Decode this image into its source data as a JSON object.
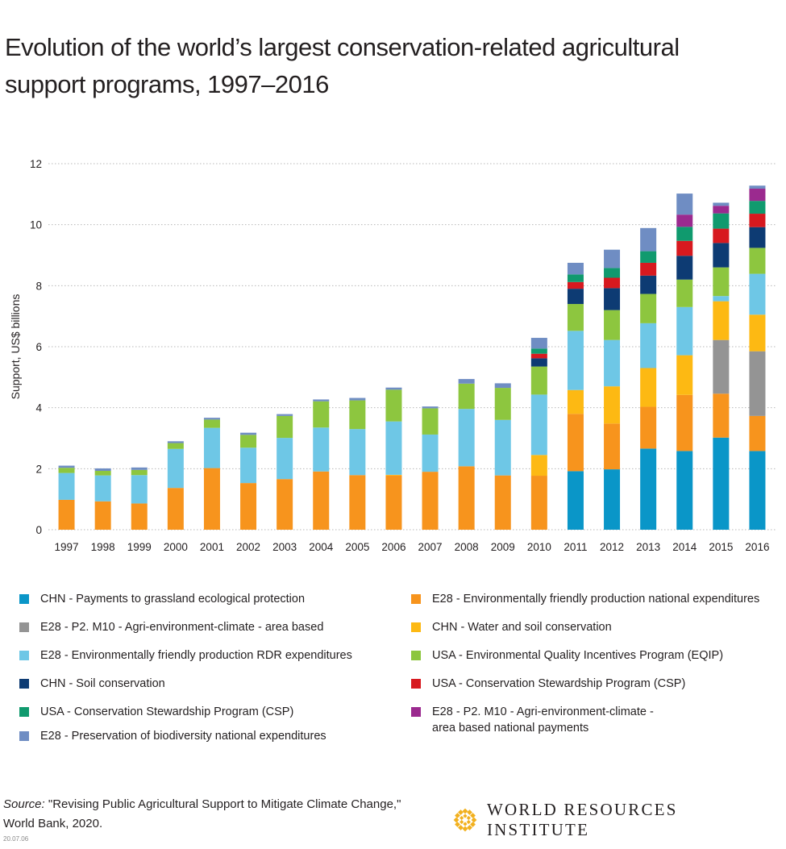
{
  "title_lines": [
    "Evolution of the world’s largest conservation-related agricultural",
    "support programs, 1997–2016"
  ],
  "source": {
    "label": "Source:",
    "line1": " \"Revising Public Agricultural Support to Mitigate Climate Change,\"",
    "line2": "World Bank, 2020."
  },
  "code": "20.07.06",
  "logo": {
    "text": "WORLD RESOURCES INSTITUTE",
    "color": "#f2b01e"
  },
  "chart_data": {
    "type": "bar",
    "stacked": true,
    "title": "Evolution of the world’s largest conservation-related agricultural support programs, 1997–2016",
    "ylabel": "Support, US$ billions",
    "xlabel": "",
    "ylim": [
      0,
      12
    ],
    "yticks": [
      0,
      2,
      4,
      6,
      8,
      10,
      12
    ],
    "grid": "horizontal",
    "legend_position": "bottom",
    "categories": [
      "1997",
      "1998",
      "1999",
      "2000",
      "2001",
      "2002",
      "2003",
      "2004",
      "2005",
      "2006",
      "2007",
      "2008",
      "2009",
      "2010",
      "2011",
      "2012",
      "2013",
      "2014",
      "2015",
      "2016"
    ],
    "series": [
      {
        "name": "CHN - Payments to grassland ecological protection",
        "color": "#0a96c8",
        "values": [
          0,
          0,
          0,
          0,
          0,
          0,
          0,
          0,
          0,
          0,
          0,
          0,
          0,
          0,
          1.92,
          1.98,
          2.66,
          2.58,
          3.02,
          2.58
        ]
      },
      {
        "name": "E28 - Environmentally friendly production  national expenditures",
        "color": "#f7941d",
        "values": [
          0.98,
          0.93,
          0.86,
          1.37,
          2.02,
          1.53,
          1.66,
          1.91,
          1.79,
          1.78,
          1.9,
          2.08,
          1.78,
          1.77,
          1.88,
          1.5,
          1.37,
          1.84,
          1.44,
          1.15
        ]
      },
      {
        "name": "E28 - P2. M10 - Agri-environment-climate - area based",
        "color": "#949494",
        "values": [
          0,
          0,
          0,
          0,
          0,
          0,
          0,
          0,
          0,
          0,
          0,
          0,
          0,
          0,
          0,
          0,
          0,
          0,
          1.76,
          2.12
        ]
      },
      {
        "name": "CHN - Water and soil conservation",
        "color": "#fdb913",
        "values": [
          0,
          0,
          0,
          0,
          0,
          0,
          0,
          0,
          0,
          0.02,
          0,
          0,
          0,
          0.68,
          0.78,
          1.22,
          1.27,
          1.3,
          1.27,
          1.2
        ]
      },
      {
        "name": "E28 - Environmentally friendly production  RDR expenditures",
        "color": "#6ec7e6",
        "values": [
          0.88,
          0.85,
          0.93,
          1.28,
          1.32,
          1.16,
          1.35,
          1.44,
          1.51,
          1.75,
          1.22,
          1.88,
          1.82,
          1.98,
          1.94,
          1.52,
          1.47,
          1.58,
          0.17,
          1.34
        ]
      },
      {
        "name": "USA - Environmental Quality Incentives Program (EQIP)",
        "color": "#8dc63f",
        "values": [
          0.17,
          0.15,
          0.17,
          0.19,
          0.27,
          0.42,
          0.72,
          0.86,
          0.94,
          1.04,
          0.86,
          0.83,
          1.05,
          0.92,
          0.88,
          0.98,
          0.96,
          0.9,
          0.94,
          0.85
        ]
      },
      {
        "name": "CHN - Soil conservation",
        "color": "#0d3b73",
        "values": [
          0,
          0,
          0,
          0,
          0,
          0,
          0,
          0,
          0,
          0,
          0,
          0,
          0,
          0.27,
          0.5,
          0.72,
          0.6,
          0.78,
          0.8,
          0.68
        ]
      },
      {
        "name": "USA - Conservation Stewardship Program (CSP)",
        "color": "#d7191f",
        "values": [
          0,
          0,
          0,
          0,
          0,
          0,
          0,
          0,
          0,
          0,
          0,
          0,
          0,
          0.15,
          0.22,
          0.34,
          0.42,
          0.49,
          0.47,
          0.44
        ]
      },
      {
        "name": "USA - Conservation Stewardship Program (CSP)",
        "color": "#109a6e",
        "values": [
          0,
          0,
          0,
          0,
          0,
          0,
          0,
          0,
          0,
          0,
          0,
          0,
          0,
          0.17,
          0.25,
          0.32,
          0.38,
          0.46,
          0.5,
          0.42
        ]
      },
      {
        "name": "E28 - P2. M10 - Agri-environment-climate - area based  national payments",
        "color": "#9b2a8f",
        "values": [
          0,
          0,
          0,
          0,
          0,
          0,
          0,
          0,
          0,
          0,
          0,
          0,
          0,
          0,
          0,
          0,
          0,
          0.4,
          0.25,
          0.4
        ]
      },
      {
        "name": "E28 - Preservation of biodiversity  national expenditures",
        "color": "#6f8dc3",
        "values": [
          0.07,
          0.08,
          0.08,
          0.06,
          0.06,
          0.07,
          0.06,
          0.06,
          0.08,
          0.07,
          0.06,
          0.15,
          0.15,
          0.35,
          0.38,
          0.6,
          0.76,
          0.69,
          0.1,
          0.1
        ]
      }
    ]
  },
  "legend": [
    {
      "label": "CHN - Payments to grassland ecological protection",
      "color": "#0a96c8"
    },
    {
      "label": "E28 - Environmentally friendly production  national expenditures",
      "color": "#f7941d"
    },
    {
      "label": "E28 - P2. M10 - Agri-environment-climate - area based",
      "color": "#949494"
    },
    {
      "label": "CHN - Water and soil conservation",
      "color": "#fdb913"
    },
    {
      "label": "E28 - Environmentally friendly production  RDR expenditures",
      "color": "#6ec7e6"
    },
    {
      "label": "USA - Environmental Quality Incentives Program (EQIP)",
      "color": "#8dc63f"
    },
    {
      "label": "CHN - Soil conservation",
      "color": "#0d3b73"
    },
    {
      "label": "USA - Conservation Stewardship Program (CSP)",
      "color": "#d7191f"
    },
    {
      "label": "USA - Conservation Stewardship Program (CSP)",
      "color": "#109a6e"
    },
    {
      "label": "E28 - P2. M10 - Agri-environment-climate -\narea based  national payments",
      "color": "#9b2a8f"
    },
    {
      "label": "E28 - Preservation of biodiversity  national expenditures",
      "color": "#6f8dc3"
    }
  ]
}
